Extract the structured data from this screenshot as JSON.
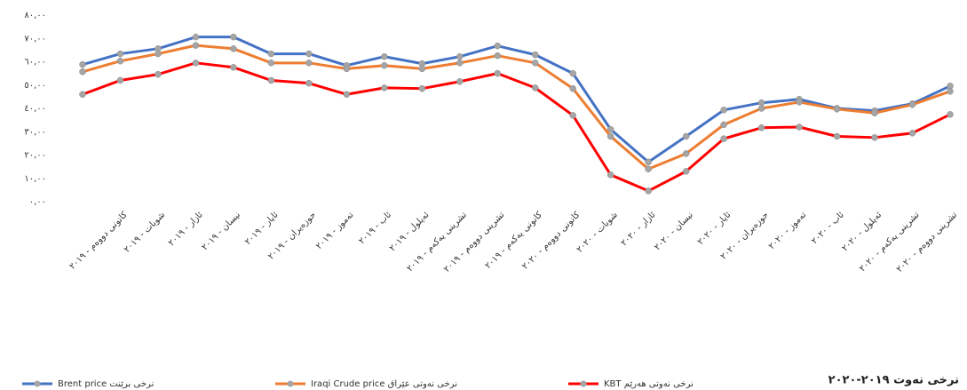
{
  "chart_data": {
    "type": "line",
    "title": "نرخی نەوت ٢٠١٩-٢٠٢٠",
    "categories": [
      null,
      "کانونی دووەم - ٢٠١٩",
      "شوبات - ٢٠١٩",
      "ئازار - ٢٠١٩",
      "نیسان - ٢٠١٩",
      "ئایار - ٢٠١٩",
      "حوزەیران - ٢٠١٩",
      "تەموز - ٢٠١٩",
      "ئاب - ٢٠١٩",
      "ئەیلول - ٢٠١٩",
      "تشرینی یەکەم - ٢٠١٩",
      "تشرینی دووەم - ٢٠١٩",
      "کانونی یەکەم - ٢٠١٩",
      "کانونی دووەم - ٢٠٢٠",
      "شوبات - ٢٠٢٠",
      "ئازار - ٢٠٢٠",
      "نیسان - ٢٠٢٠",
      "ئایار - ٢٠٢٠",
      "حوزەیران - ٢٠٢٠",
      "تەموز - ٢٠٢٠",
      "ئاب - ٢٠٢٠",
      "ئەیلول - ٢٠٢٠",
      "تشرینی یەکەم - ٢٠٢٠",
      "تشرینی دووەم - ٢٠٢٠"
    ],
    "series": [
      {
        "name": "Brent price  نرخی برێنت",
        "color": "#4472c4",
        "values": [
          58.8,
          63.4,
          65.6,
          70.6,
          70.6,
          63.4,
          63.4,
          58.4,
          62.2,
          59.2,
          62.2,
          66.8,
          63,
          55,
          31,
          17,
          28,
          39.3,
          42.4,
          43.9,
          40,
          39,
          42,
          49.6
        ]
      },
      {
        "name": "Iraqi Crude price نرخی نەوتی عێراق",
        "color": "#ed7d31",
        "values": [
          55.7,
          60.3,
          63.4,
          67,
          65.6,
          59.5,
          59.5,
          57,
          58.4,
          57,
          59.5,
          62.6,
          59.5,
          48.5,
          28,
          14,
          20.6,
          33,
          40,
          42.7,
          39.7,
          38,
          41.6,
          47.3
        ]
      },
      {
        "name": "KBT نرخی نەوتی هەرێم",
        "color": "#ff0000",
        "values": [
          46,
          52,
          54.6,
          59.5,
          57.6,
          52,
          50.8,
          46,
          48.8,
          48.5,
          51.5,
          55,
          48.8,
          37,
          11.5,
          4.6,
          13,
          27,
          31.7,
          32,
          28,
          27.5,
          29.4,
          37.4
        ]
      }
    ],
    "marker_color": "#a5a5a5",
    "ylim": [
      0,
      80
    ],
    "yticks": [
      {
        "value": 0,
        "label": "٠,٠٠"
      },
      {
        "value": 10,
        "label": "١٠,٠٠"
      },
      {
        "value": 20,
        "label": "٢٠,٠٠"
      },
      {
        "value": 30,
        "label": "٣٠,٠٠"
      },
      {
        "value": 40,
        "label": "٤٠,٠٠"
      },
      {
        "value": 50,
        "label": "٥٠,٠٠"
      },
      {
        "value": 60,
        "label": "٦٠,٠٠"
      },
      {
        "value": 70,
        "label": "٧٠,٠٠"
      },
      {
        "value": 80,
        "label": "٨٠,٠٠"
      }
    ],
    "legend": "bottom"
  }
}
